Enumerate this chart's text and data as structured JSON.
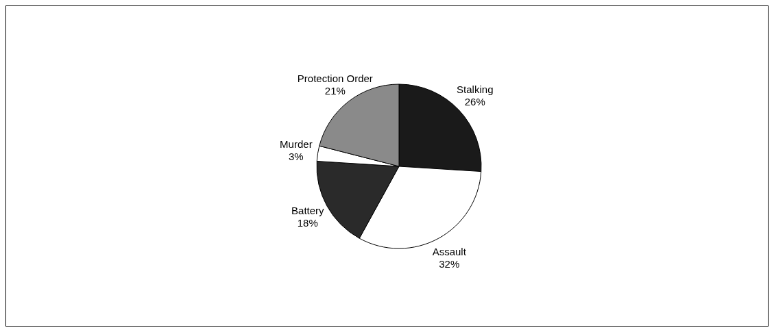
{
  "chart_data": {
    "type": "pie",
    "categories": [
      "Stalking",
      "Assault",
      "Battery",
      "Murder",
      "Protection Order"
    ],
    "values": [
      26,
      32,
      18,
      3,
      21
    ],
    "value_labels": [
      "26%",
      "32%",
      "18%",
      "3%",
      "21%"
    ],
    "colors": [
      "#1a1a1a",
      "#ffffff",
      "#2a2a2a",
      "#ffffff",
      "#8a8a8a"
    ],
    "legend": false
  }
}
